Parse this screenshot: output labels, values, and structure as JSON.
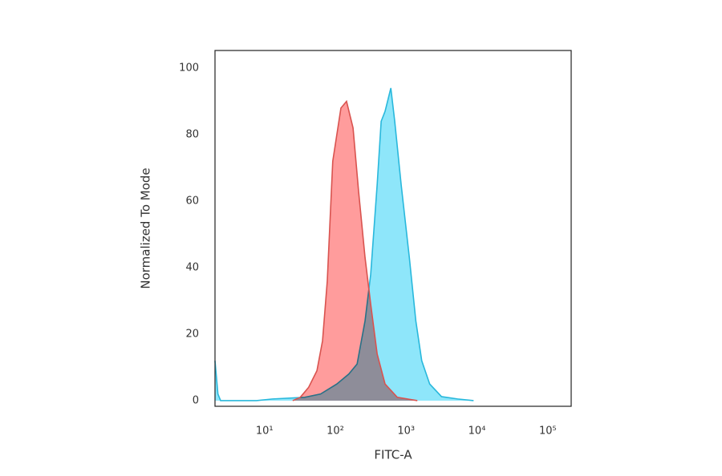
{
  "chart_data": {
    "type": "histogram-overlay",
    "xlabel": "FITC-A",
    "ylabel": "Normalized To Mode",
    "xscale": "log",
    "xlim": [
      2,
      214000
    ],
    "ylim": [
      -1.7,
      105.3
    ],
    "xticks": [
      {
        "value": 10,
        "label": "10¹"
      },
      {
        "value": 100,
        "label": "10²"
      },
      {
        "value": 1000,
        "label": "10³"
      },
      {
        "value": 10000,
        "label": "10⁴"
      },
      {
        "value": 100000,
        "label": "10⁵"
      }
    ],
    "yticks": [
      0,
      20,
      40,
      60,
      80,
      100
    ],
    "grid": false,
    "series": [
      {
        "color": "#29b8dc",
        "fill": "#8ee6fa",
        "x": [
          2,
          2.2,
          2.4,
          7.7,
          13,
          37,
          62,
          105,
          155,
          203,
          263,
          316,
          390,
          444,
          504,
          608,
          690,
          850,
          1110,
          1370,
          1660,
          2150,
          3160,
          5340,
          8960
        ],
        "values": [
          12,
          2,
          0,
          0,
          0.5,
          1,
          2,
          5,
          8,
          11,
          24,
          38,
          65,
          84,
          87,
          94,
          84,
          65,
          43,
          24,
          12,
          5,
          1.2,
          0.5,
          0
        ]
      },
      {
        "color": "#d9534f",
        "fill": "#ff9c9c",
        "x": [
          25,
          32,
          42,
          55,
          66,
          77,
          92,
          120,
          144,
          178,
          213,
          263,
          316,
          390,
          504,
          750,
          1440
        ],
        "values": [
          0,
          1,
          4,
          9,
          18,
          36,
          72,
          88,
          90,
          82,
          63,
          43,
          29,
          14,
          5,
          1,
          0
        ]
      }
    ]
  }
}
